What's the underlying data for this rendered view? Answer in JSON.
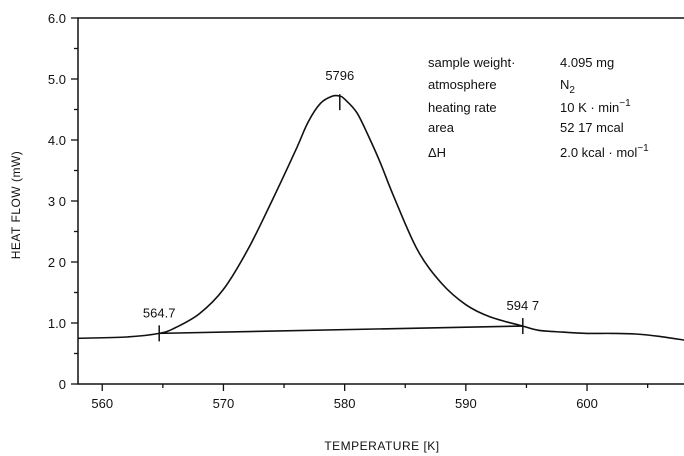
{
  "chart_data": {
    "type": "line",
    "title": "",
    "xlabel": "TEMPERATURE [K]",
    "ylabel": "HEAT FLOW (mW)",
    "xlim": [
      558,
      608
    ],
    "ylim": [
      0,
      6.0
    ],
    "x_ticks": [
      560,
      570,
      580,
      590,
      600
    ],
    "x_tick_labels": [
      "560",
      "570",
      "580",
      "590",
      "600"
    ],
    "y_ticks": [
      0,
      1.0,
      2.0,
      3.0,
      4.0,
      5.0,
      6.0
    ],
    "y_tick_labels": [
      "0",
      "1.0",
      "2 0",
      "3 0",
      "4.0",
      "5.0",
      "6.0"
    ],
    "grid": false,
    "series": [
      {
        "x": [
          558,
          562,
          564.7,
          566,
          568,
          570,
          572,
          574,
          576,
          577,
          578,
          579,
          579.6,
          580,
          581,
          582,
          583,
          584,
          586,
          588,
          590,
          592,
          594.7,
          596,
          598,
          600,
          602,
          604,
          606,
          608
        ],
        "values": [
          0.75,
          0.77,
          0.83,
          0.92,
          1.15,
          1.55,
          2.2,
          3.0,
          3.85,
          4.3,
          4.6,
          4.72,
          4.72,
          4.67,
          4.45,
          4.05,
          3.6,
          3.1,
          2.2,
          1.65,
          1.3,
          1.1,
          0.95,
          0.88,
          0.85,
          0.83,
          0.83,
          0.82,
          0.78,
          0.72
        ]
      },
      {
        "x": [
          564.7,
          594.7
        ],
        "values": [
          0.83,
          0.95
        ]
      }
    ],
    "markers": [
      {
        "x": 564.7,
        "y": 0.83,
        "label": "564.7"
      },
      {
        "x": 579.6,
        "y": 4.62,
        "label": "5796"
      },
      {
        "x": 594.7,
        "y": 0.95,
        "label": "594 7"
      }
    ]
  },
  "info": {
    "rows": [
      {
        "label": "sample weight·",
        "value": "4.095 mg"
      },
      {
        "label": "atmosphere",
        "value": "N",
        "sub": "2"
      },
      {
        "label": "heating rate",
        "value": "10 K · min",
        "sup": "−1"
      },
      {
        "label": "area",
        "value": "52 17 mcal"
      },
      {
        "label": "ΔH",
        "value": "2.0 kcal · mol",
        "sup": "−1"
      }
    ]
  }
}
